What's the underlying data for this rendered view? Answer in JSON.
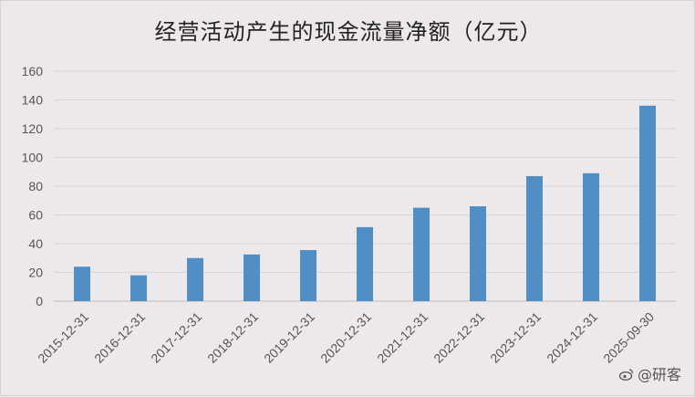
{
  "chart_data": {
    "type": "bar",
    "title": "经营活动产生的现金流量净额（亿元）",
    "categories": [
      "2015-12-31",
      "2016-12-31",
      "2017-12-31",
      "2018-12-31",
      "2019-12-31",
      "2020-12-31",
      "2021-12-31",
      "2022-12-31",
      "2023-12-31",
      "2024-12-31",
      "2025-09-30"
    ],
    "values": [
      24,
      18,
      30,
      32.5,
      35.5,
      51.5,
      65,
      66,
      87,
      89,
      136
    ],
    "ylim": [
      0,
      160
    ],
    "yticks": [
      0,
      20,
      40,
      60,
      80,
      100,
      120,
      140,
      160
    ],
    "grid": true,
    "bar_color": "#4f8fc6",
    "xlabel": "",
    "ylabel": ""
  },
  "watermark": {
    "text": "@研客",
    "icon": "weibo-icon"
  }
}
